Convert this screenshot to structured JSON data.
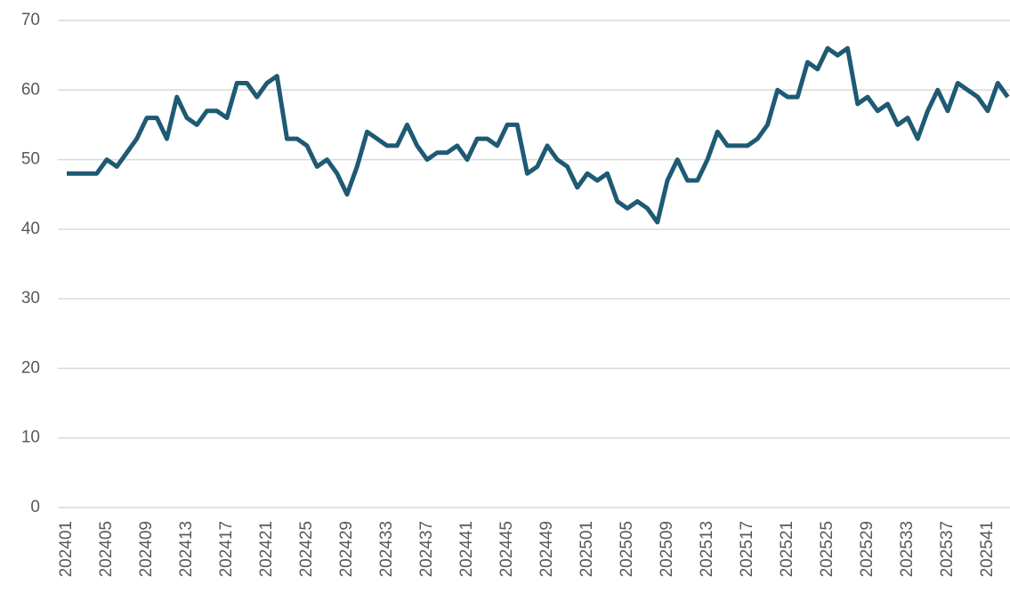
{
  "chart_data": {
    "type": "line",
    "categories": [
      "202401",
      null,
      null,
      null,
      "202405",
      null,
      null,
      null,
      "202409",
      null,
      null,
      null,
      "202413",
      null,
      null,
      null,
      "202417",
      null,
      null,
      null,
      "202421",
      null,
      null,
      null,
      "202425",
      null,
      null,
      null,
      "202429",
      null,
      null,
      null,
      "202433",
      null,
      null,
      null,
      "202437",
      null,
      null,
      null,
      "202441",
      null,
      null,
      null,
      "202445",
      null,
      null,
      null,
      "202449",
      null,
      null,
      null,
      "202501",
      null,
      null,
      null,
      "202505",
      null,
      null,
      null,
      "202509",
      null,
      null,
      null,
      "202513",
      null,
      null,
      null,
      "202517",
      null,
      null,
      null,
      "202521",
      null,
      null,
      null,
      "202525",
      null,
      null,
      null,
      "202529",
      null,
      null,
      null,
      "202533",
      null,
      null,
      null,
      "202537",
      null,
      null,
      null,
      "202541",
      null,
      null
    ],
    "series": [
      {
        "color": "#1e5a74",
        "values": [
          48,
          48,
          48,
          48,
          50,
          49,
          51,
          53,
          56,
          56,
          53,
          59,
          56,
          55,
          57,
          57,
          56,
          61,
          61,
          59,
          61,
          62,
          53,
          53,
          52,
          49,
          50,
          48,
          45,
          49,
          54,
          53,
          52,
          52,
          55,
          52,
          50,
          51,
          51,
          52,
          50,
          53,
          53,
          52,
          55,
          55,
          48,
          49,
          52,
          50,
          49,
          46,
          48,
          47,
          48,
          44,
          43,
          44,
          43,
          41,
          47,
          50,
          47,
          47,
          50,
          54,
          52,
          52,
          52,
          53,
          55,
          60,
          59,
          59,
          64,
          63,
          66,
          65,
          66,
          58,
          59,
          57,
          58,
          55,
          56,
          53,
          57,
          60,
          57,
          61,
          60,
          59,
          57,
          61,
          59
        ]
      }
    ],
    "ylim": [
      0,
      70
    ],
    "yticks": [
      0,
      10,
      20,
      30,
      40,
      50,
      60,
      70
    ],
    "grid": true
  }
}
